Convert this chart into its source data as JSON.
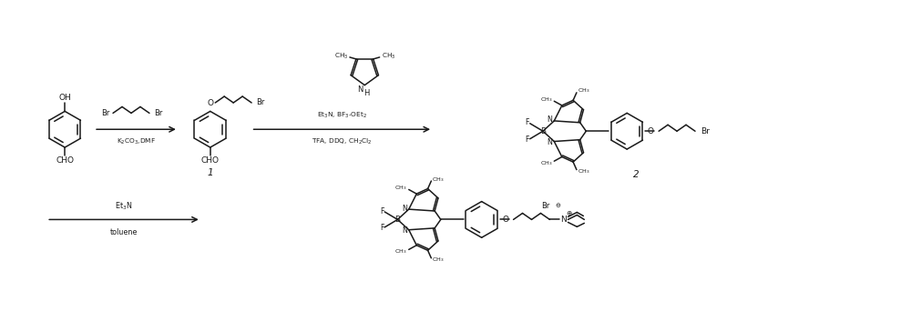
{
  "bg_color": "#ffffff",
  "line_color": "#1a1a1a",
  "figsize": [
    10.0,
    3.42
  ],
  "dpi": 100,
  "r1_top": "Br",
  "r1_bot": "K$_2$CO$_3$,DMF",
  "r2_top": "Et$_3$N, BF$_3$-OEt$_2$",
  "r2_bot": "TFA, DDQ, CH$_2$Cl$_2$",
  "r3_top": "Et$_3$N",
  "r3_bot": "toluene",
  "lbl1": "1",
  "lbl2": "2"
}
